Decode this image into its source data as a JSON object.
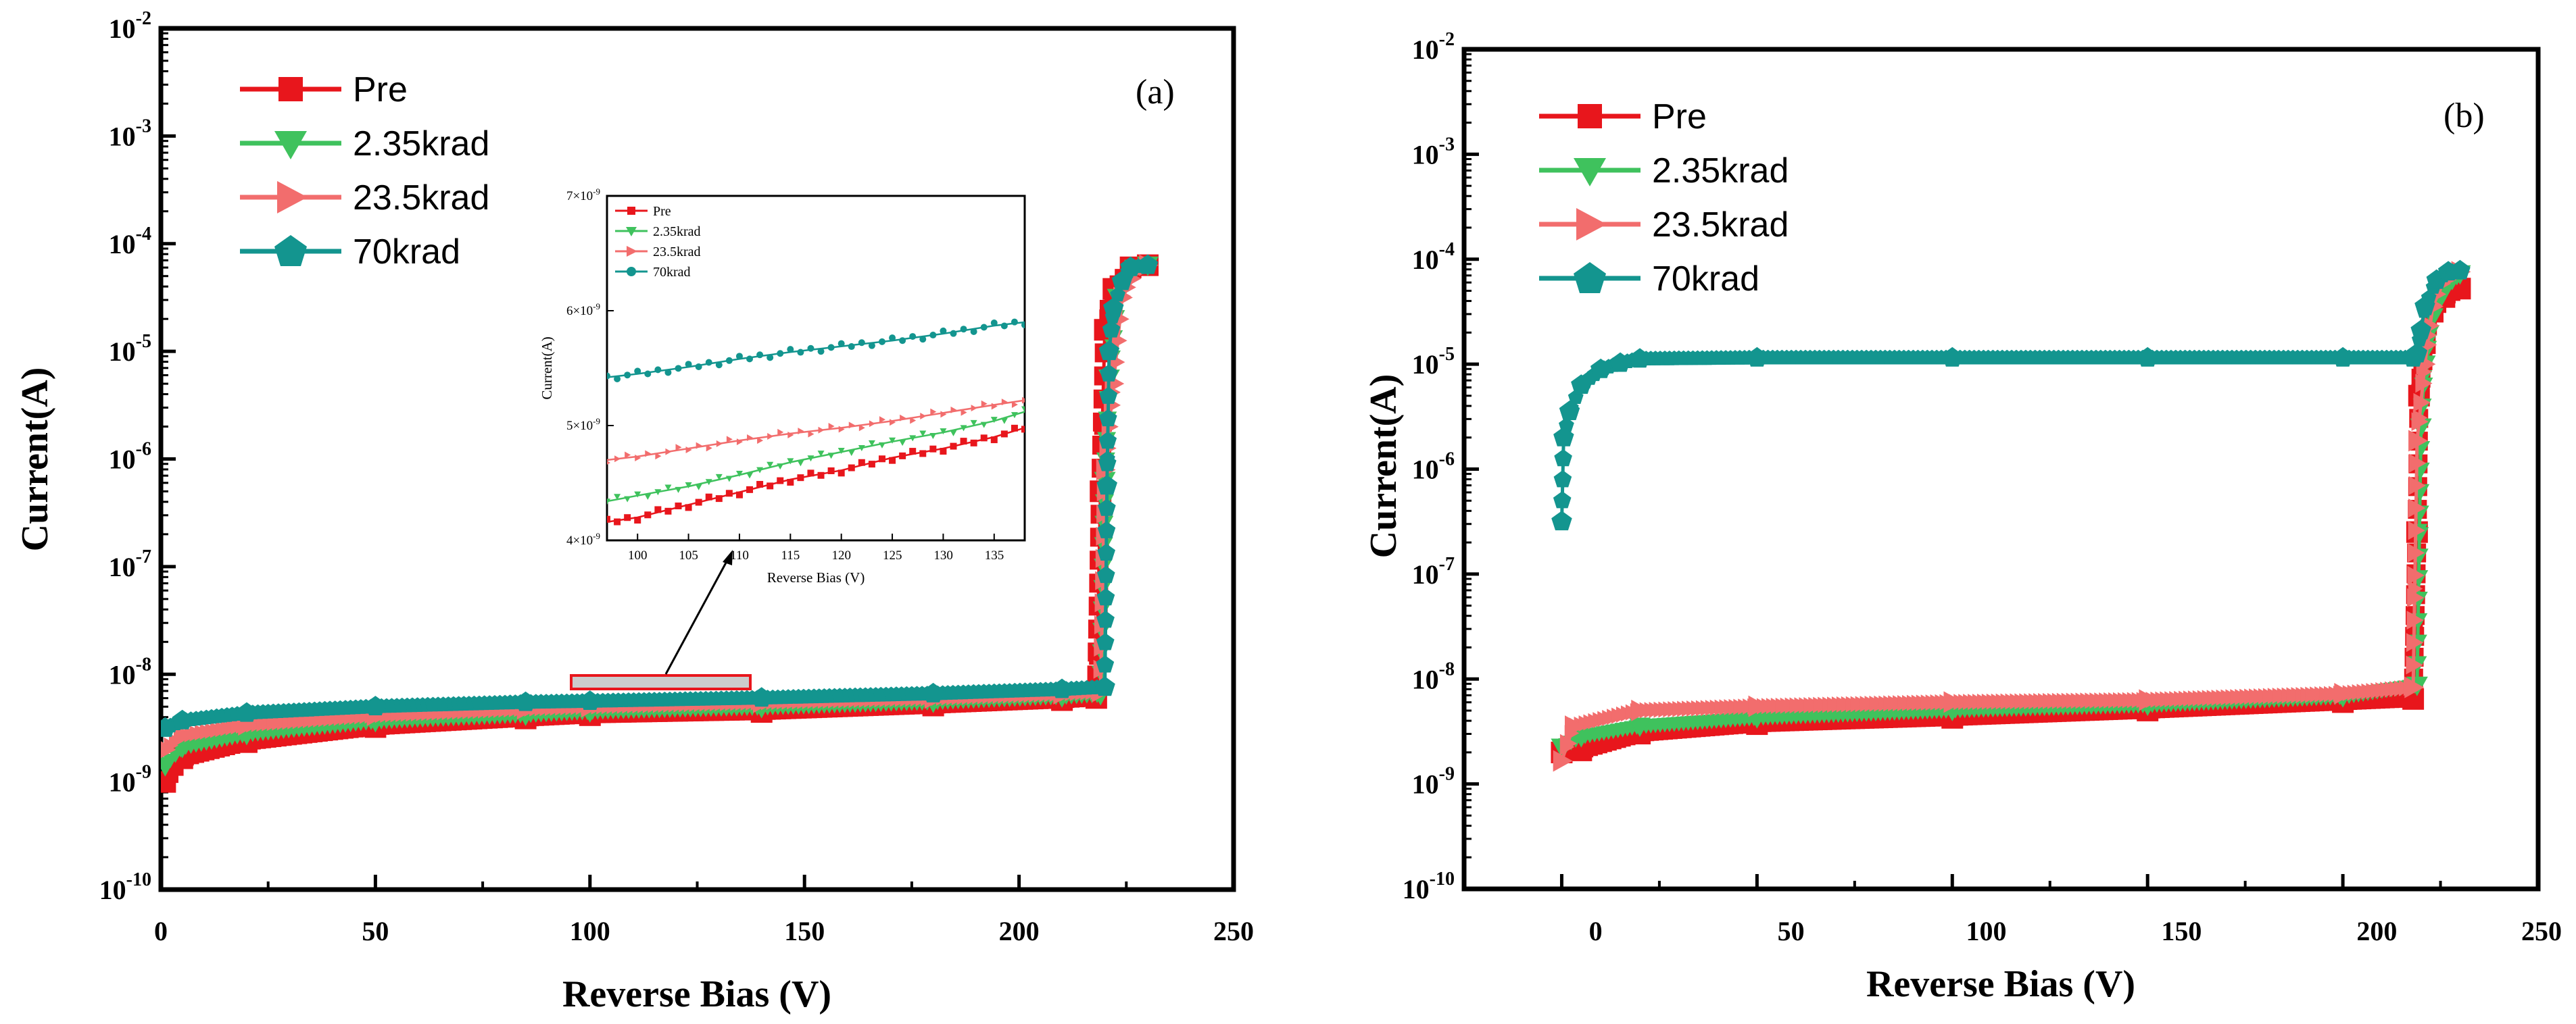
{
  "chart_data": [
    {
      "panel": "(a)",
      "type": "scatter",
      "title": "",
      "xlabel": "Reverse Bias (V)",
      "ylabel": "Current(A)",
      "xlim": [
        0,
        250
      ],
      "ylim_exp": [
        -10,
        -2
      ],
      "yscale": "log",
      "x_ticks": [
        0,
        50,
        100,
        150,
        200,
        250
      ],
      "y_tick_base": "10",
      "y_tick_exps": [
        "-2",
        "-3",
        "-4",
        "-5",
        "-6",
        "-7",
        "-8",
        "-9",
        "-10"
      ],
      "legend_position": "top-left",
      "series": [
        {
          "name": "Pre",
          "color": "#e8161c",
          "marker": "square",
          "points": [
            [
              1,
              -9.0
            ],
            [
              5,
              -8.78
            ],
            [
              20,
              -8.63
            ],
            [
              50,
              -8.49
            ],
            [
              85,
              -8.41
            ],
            [
              100,
              -8.38
            ],
            [
              140,
              -8.35
            ],
            [
              180,
              -8.29
            ],
            [
              210,
              -8.24
            ],
            [
              218,
              -8.22
            ],
            [
              219,
              -6.3
            ],
            [
              220,
              -4.8
            ],
            [
              222,
              -4.42
            ],
            [
              226,
              -4.22
            ],
            [
              230,
              -4.2
            ]
          ]
        },
        {
          "name": "2.35krad",
          "color": "#3fc25d",
          "marker": "triangle-down",
          "points": [
            [
              1,
              -8.85
            ],
            [
              5,
              -8.68
            ],
            [
              20,
              -8.56
            ],
            [
              50,
              -8.44
            ],
            [
              85,
              -8.38
            ],
            [
              100,
              -8.35
            ],
            [
              140,
              -8.31
            ],
            [
              180,
              -8.26
            ],
            [
              210,
              -8.21
            ],
            [
              219,
              -8.19
            ],
            [
              220,
              -6.2
            ],
            [
              221,
              -5.25
            ],
            [
              223,
              -4.5
            ],
            [
              227,
              -4.23
            ],
            [
              230,
              -4.2
            ]
          ]
        },
        {
          "name": "23.5krad",
          "color": "#f26d6d",
          "marker": "triangle-right",
          "points": [
            [
              1,
              -8.7
            ],
            [
              5,
              -8.57
            ],
            [
              20,
              -8.47
            ],
            [
              50,
              -8.38
            ],
            [
              85,
              -8.32
            ],
            [
              100,
              -8.3
            ],
            [
              140,
              -8.26
            ],
            [
              180,
              -8.22
            ],
            [
              210,
              -8.18
            ],
            [
              219,
              -8.16
            ],
            [
              220,
              -6.1
            ],
            [
              222,
              -5.3
            ],
            [
              224,
              -4.5
            ],
            [
              228,
              -4.23
            ],
            [
              230,
              -4.2
            ]
          ]
        },
        {
          "name": "70krad",
          "color": "#13958f",
          "marker": "pentagon",
          "points": [
            [
              1,
              -8.5
            ],
            [
              5,
              -8.43
            ],
            [
              20,
              -8.36
            ],
            [
              50,
              -8.3
            ],
            [
              85,
              -8.26
            ],
            [
              100,
              -8.25
            ],
            [
              140,
              -8.22
            ],
            [
              180,
              -8.18
            ],
            [
              210,
              -8.14
            ],
            [
              220,
              -8.12
            ],
            [
              220.5,
              -6.25
            ],
            [
              221,
              -5.0
            ],
            [
              222,
              -4.6
            ],
            [
              224,
              -4.35
            ],
            [
              226,
              -4.22
            ],
            [
              230,
              -4.2
            ]
          ]
        }
      ],
      "inset": {
        "xlabel": "Reverse Bias (V)",
        "ylabel": "Current(A)",
        "xlim": [
          97,
          138
        ],
        "ylim": [
          4.0,
          7.0
        ],
        "x_ticks": [
          100,
          105,
          110,
          115,
          120,
          125,
          130,
          135
        ],
        "y_ticks": [
          4,
          5,
          6,
          7
        ],
        "y_tick_exp": "-9",
        "legend_position": "top-left",
        "series": [
          {
            "name": "Pre",
            "x": [
              97,
              100,
              105,
              110,
              115,
              120,
              125,
              130,
              135,
              138
            ],
            "values": [
              4.16,
              4.2,
              4.31,
              4.42,
              4.53,
              4.61,
              4.72,
              4.8,
              4.9,
              4.98
            ]
          },
          {
            "name": "2.35krad",
            "x": [
              97,
              100,
              105,
              110,
              115,
              120,
              125,
              130,
              135,
              138
            ],
            "values": [
              4.34,
              4.39,
              4.47,
              4.57,
              4.68,
              4.77,
              4.86,
              4.94,
              5.04,
              5.12
            ]
          },
          {
            "name": "23.5krad",
            "x": [
              97,
              100,
              105,
              110,
              115,
              120,
              125,
              130,
              135,
              138
            ],
            "values": [
              4.7,
              4.73,
              4.8,
              4.87,
              4.93,
              4.98,
              5.04,
              5.11,
              5.18,
              5.22
            ]
          },
          {
            "name": "70krad",
            "x": [
              97,
              100,
              105,
              110,
              115,
              120,
              125,
              130,
              135,
              138
            ],
            "values": [
              5.42,
              5.45,
              5.51,
              5.58,
              5.64,
              5.69,
              5.74,
              5.8,
              5.87,
              5.9
            ]
          }
        ]
      }
    },
    {
      "panel": "(b)",
      "type": "scatter",
      "title": "",
      "xlabel": "Reverse Bias (V)",
      "ylabel": "Current(A)",
      "xlim": [
        -25,
        250
      ],
      "ylim_exp": [
        -10,
        -2
      ],
      "yscale": "log",
      "x_ticks": [
        0,
        50,
        100,
        150,
        200,
        250
      ],
      "y_tick_base": "10",
      "y_tick_exps": [
        "-2",
        "-3",
        "-4",
        "-5",
        "-6",
        "-7",
        "-8",
        "-9",
        "-10"
      ],
      "legend_position": "top-left",
      "series": [
        {
          "name": "Pre",
          "color": "#e8161c",
          "marker": "square",
          "points": [
            [
              0,
              -8.7
            ],
            [
              5,
              -8.68
            ],
            [
              20,
              -8.52
            ],
            [
              50,
              -8.43
            ],
            [
              100,
              -8.37
            ],
            [
              150,
              -8.3
            ],
            [
              200,
              -8.22
            ],
            [
              218,
              -8.19
            ],
            [
              219,
              -6.6
            ],
            [
              219.5,
              -5.3
            ],
            [
              221,
              -4.8
            ],
            [
              223,
              -4.5
            ],
            [
              226,
              -4.36
            ],
            [
              230,
              -4.28
            ]
          ]
        },
        {
          "name": "2.35krad",
          "color": "#3fc25d",
          "marker": "triangle-down",
          "points": [
            [
              0,
              -8.65
            ],
            [
              5,
              -8.55
            ],
            [
              20,
              -8.45
            ],
            [
              50,
              -8.37
            ],
            [
              100,
              -8.3
            ],
            [
              150,
              -8.25
            ],
            [
              200,
              -8.17
            ],
            [
              219,
              -8.06
            ],
            [
              220,
              -5.6
            ],
            [
              221,
              -5.0
            ],
            [
              223,
              -4.55
            ],
            [
              226,
              -4.3
            ],
            [
              230,
              -4.14
            ]
          ]
        },
        {
          "name": "23.5krad",
          "color": "#f26d6d",
          "marker": "triangle-right",
          "points": [
            [
              0,
              -8.78
            ],
            [
              3,
              -8.45
            ],
            [
              20,
              -8.3
            ],
            [
              50,
              -8.26
            ],
            [
              100,
              -8.22
            ],
            [
              150,
              -8.2
            ],
            [
              200,
              -8.14
            ],
            [
              218,
              -8.08
            ],
            [
              219,
              -5.73
            ],
            [
              221,
              -5.0
            ],
            [
              223,
              -4.45
            ],
            [
              226,
              -4.2
            ],
            [
              230,
              -4.12
            ]
          ]
        },
        {
          "name": "70krad",
          "color": "#13958f",
          "marker": "pentagon",
          "points": [
            [
              0,
              -6.5
            ],
            [
              0.5,
              -5.7
            ],
            [
              2,
              -5.45
            ],
            [
              5,
              -5.2
            ],
            [
              10,
              -5.05
            ],
            [
              15,
              -4.99
            ],
            [
              20,
              -4.95
            ],
            [
              50,
              -4.94
            ],
            [
              100,
              -4.94
            ],
            [
              150,
              -4.94
            ],
            [
              200,
              -4.94
            ],
            [
              218,
              -4.94
            ],
            [
              219,
              -4.9
            ],
            [
              220,
              -4.68
            ],
            [
              221,
              -4.45
            ],
            [
              224,
              -4.2
            ],
            [
              227,
              -4.12
            ],
            [
              230,
              -4.11
            ]
          ]
        }
      ]
    }
  ]
}
